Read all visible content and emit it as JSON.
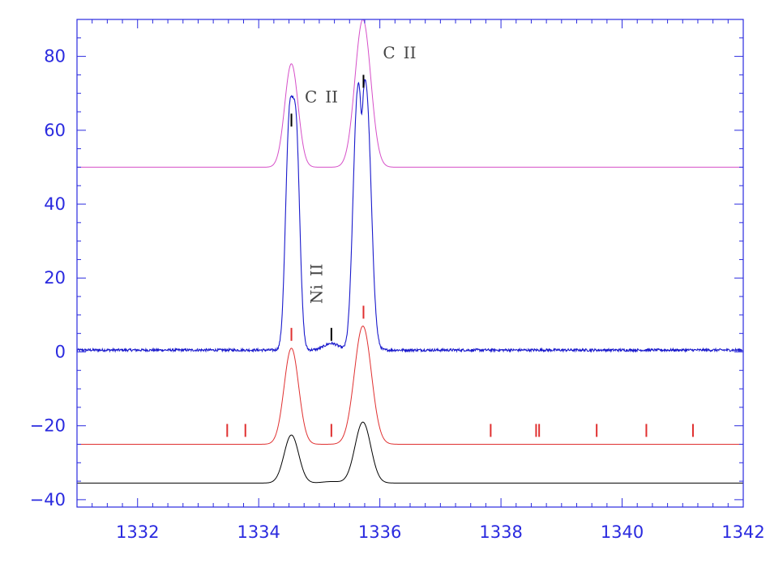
{
  "chart_data": {
    "type": "line",
    "title": "",
    "xlabel": "",
    "ylabel": "",
    "xlim": [
      1331,
      1342
    ],
    "ylim": [
      -42,
      90
    ],
    "x_ticks": [
      1332,
      1334,
      1336,
      1338,
      1340,
      1342
    ],
    "y_ticks": [
      -40,
      -20,
      0,
      20,
      40,
      60,
      80
    ],
    "x_tick_labels": [
      "1332",
      "1334",
      "1336",
      "1338",
      "1340",
      "1342"
    ],
    "y_tick_labels": [
      "−40",
      "−20",
      "0",
      "20",
      "40",
      "60",
      "80"
    ],
    "grid": false,
    "legend": "none",
    "colors": {
      "axis": "#2a2adf",
      "observed": "#1a1acc",
      "magenta": "#d64fc8",
      "red": "#e03030",
      "black": "#000000",
      "annotation": "#444444"
    },
    "series": [
      {
        "baseline": 50,
        "color": "#d64fc8",
        "peaks": [
          {
            "center": 1334.54,
            "height": 28,
            "width": 0.11
          },
          {
            "center": 1335.72,
            "height": 40,
            "width": 0.13
          }
        ]
      },
      {
        "baseline": 0.5,
        "color": "#1a1acc",
        "noise": 0.35,
        "peaks": [
          {
            "center": 1334.5,
            "height": 57,
            "width": 0.06
          },
          {
            "center": 1334.62,
            "height": 56,
            "width": 0.06
          },
          {
            "center": 1335.62,
            "height": 60,
            "width": 0.07
          },
          {
            "center": 1335.78,
            "height": 67,
            "width": 0.08
          },
          {
            "center": 1335.7,
            "height": -8,
            "width": 0.02
          },
          {
            "center": 1335.2,
            "height": 1.8,
            "width": 0.12
          }
        ]
      },
      {
        "baseline": -25,
        "color": "#e03030",
        "peaks": [
          {
            "center": 1334.54,
            "height": 26,
            "width": 0.12
          },
          {
            "center": 1335.72,
            "height": 32,
            "width": 0.14
          }
        ]
      },
      {
        "baseline": -35.5,
        "color": "#000000",
        "peaks": [
          {
            "center": 1334.54,
            "height": 13,
            "width": 0.12
          },
          {
            "center": 1335.72,
            "height": 16.5,
            "width": 0.13
          },
          {
            "center": 1335.2,
            "height": 0.4,
            "width": 0.15
          }
        ]
      }
    ],
    "line_markers": {
      "black": [
        {
          "x": 1334.54,
          "y0": 61,
          "y1": 64.5
        },
        {
          "x": 1335.73,
          "y0": 71.5,
          "y1": 75
        },
        {
          "x": 1335.2,
          "y0": 3,
          "y1": 6.5
        }
      ],
      "red": [
        {
          "x": 1334.54,
          "y0": 3,
          "y1": 6.5
        },
        {
          "x": 1335.73,
          "y0": 9,
          "y1": 12.5
        },
        {
          "x": 1333.48,
          "y0": -23,
          "y1": -19.5
        },
        {
          "x": 1333.78,
          "y0": -23,
          "y1": -19.5
        },
        {
          "x": 1335.2,
          "y0": -23,
          "y1": -19.5
        },
        {
          "x": 1337.83,
          "y0": -23,
          "y1": -19.5
        },
        {
          "x": 1338.58,
          "y0": -23,
          "y1": -19.5
        },
        {
          "x": 1338.63,
          "y0": -23,
          "y1": -19.5
        },
        {
          "x": 1339.58,
          "y0": -23,
          "y1": -19.5
        },
        {
          "x": 1340.4,
          "y0": -23,
          "y1": -19.5
        },
        {
          "x": 1341.17,
          "y0": -23,
          "y1": -19.5
        }
      ]
    },
    "annotations": [
      {
        "text": "C II",
        "x": 1334.76,
        "y": 67.5,
        "rotate": 0
      },
      {
        "text": "C II",
        "x": 1336.05,
        "y": 79.5,
        "rotate": 0
      },
      {
        "text": "Ni II",
        "x": 1335.05,
        "y": 13,
        "rotate": -90
      }
    ]
  }
}
